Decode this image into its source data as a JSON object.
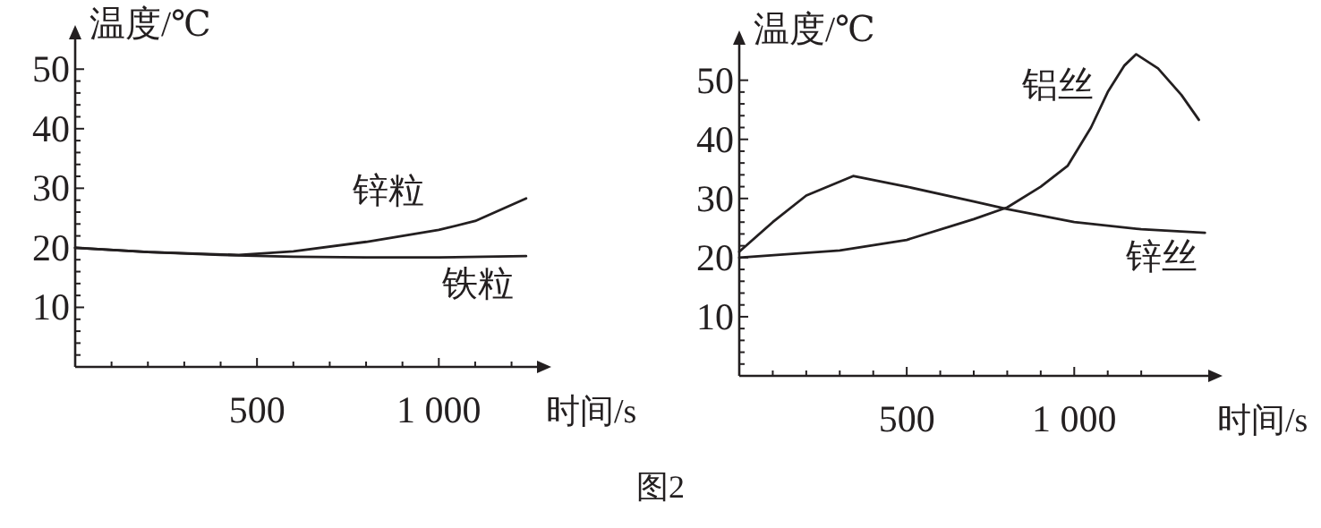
{
  "chart_data": [
    {
      "type": "line",
      "ylabel": "温度/℃",
      "xlabel": "时间/s",
      "xlim": [
        0,
        1270
      ],
      "ylim": [
        0,
        55
      ],
      "xticks": [
        {
          "value": 100,
          "label": null
        },
        {
          "value": 200,
          "label": null
        },
        {
          "value": 300,
          "label": null
        },
        {
          "value": 400,
          "label": null
        },
        500,
        {
          "value": 600,
          "label": null
        },
        {
          "value": 700,
          "label": null
        },
        {
          "value": 800,
          "label": null
        },
        {
          "value": 900,
          "label": null
        },
        {
          "value": 1000,
          "label": "1 000"
        },
        {
          "value": 1100,
          "label": null
        },
        {
          "value": 1200,
          "label": null
        }
      ],
      "yticks": [
        {
          "value": 2,
          "label": null
        },
        {
          "value": 4,
          "label": null
        },
        {
          "value": 6,
          "label": null
        },
        {
          "value": 8,
          "label": null
        },
        10,
        {
          "value": 12,
          "label": null
        },
        {
          "value": 14,
          "label": null
        },
        {
          "value": 16,
          "label": null
        },
        {
          "value": 18,
          "label": null
        },
        20,
        {
          "value": 22,
          "label": null
        },
        {
          "value": 24,
          "label": null
        },
        {
          "value": 26,
          "label": null
        },
        {
          "value": 28,
          "label": null
        },
        30,
        {
          "value": 32,
          "label": null
        },
        {
          "value": 34,
          "label": null
        },
        {
          "value": 36,
          "label": null
        },
        {
          "value": 38,
          "label": null
        },
        40,
        {
          "value": 42,
          "label": null
        },
        {
          "value": 44,
          "label": null
        },
        {
          "value": 46,
          "label": null
        },
        {
          "value": 48,
          "label": null
        },
        50
      ],
      "series": [
        {
          "name": "锌粒",
          "color": "#231f20",
          "x": [
            0,
            200,
            450,
            600,
            800,
            1000,
            1100,
            1240
          ],
          "values": [
            20,
            19.3,
            18.8,
            19.4,
            21,
            23,
            24.5,
            28.3
          ]
        },
        {
          "name": "铁粒",
          "color": "#231f20",
          "x": [
            0,
            200,
            400,
            600,
            800,
            1000,
            1240
          ],
          "values": [
            20,
            19.3,
            18.8,
            18.5,
            18.4,
            18.4,
            18.6
          ]
        }
      ],
      "annotations": [
        "图2"
      ]
    },
    {
      "type": "line",
      "ylabel": "温度/℃",
      "xlabel": "时间/s",
      "xlim": [
        0,
        1400
      ],
      "ylim": [
        0,
        56
      ],
      "xticks": [
        {
          "value": 100,
          "label": null
        },
        {
          "value": 200,
          "label": null
        },
        {
          "value": 300,
          "label": null
        },
        {
          "value": 400,
          "label": null
        },
        500,
        {
          "value": 600,
          "label": null
        },
        {
          "value": 700,
          "label": null
        },
        {
          "value": 800,
          "label": null
        },
        {
          "value": 900,
          "label": null
        },
        {
          "value": 1000,
          "label": "1 000"
        },
        {
          "value": 1100,
          "label": null
        },
        {
          "value": 1200,
          "label": null
        }
      ],
      "yticks": [
        {
          "value": 2,
          "label": null
        },
        {
          "value": 4,
          "label": null
        },
        {
          "value": 6,
          "label": null
        },
        {
          "value": 8,
          "label": null
        },
        10,
        {
          "value": 12,
          "label": null
        },
        {
          "value": 14,
          "label": null
        },
        {
          "value": 16,
          "label": null
        },
        {
          "value": 18,
          "label": null
        },
        20,
        {
          "value": 22,
          "label": null
        },
        {
          "value": 24,
          "label": null
        },
        {
          "value": 26,
          "label": null
        },
        {
          "value": 28,
          "label": null
        },
        30,
        {
          "value": 32,
          "label": null
        },
        {
          "value": 34,
          "label": null
        },
        {
          "value": 36,
          "label": null
        },
        {
          "value": 38,
          "label": null
        },
        40,
        {
          "value": 42,
          "label": null
        },
        {
          "value": 44,
          "label": null
        },
        {
          "value": 46,
          "label": null
        },
        {
          "value": 48,
          "label": null
        },
        50
      ],
      "series": [
        {
          "name": "铝丝",
          "color": "#231f20",
          "x": [
            0,
            300,
            500,
            700,
            800,
            900,
            980,
            1050,
            1100,
            1150,
            1185,
            1250,
            1320,
            1372
          ],
          "values": [
            20,
            21.2,
            23,
            26.5,
            28.5,
            32,
            35.5,
            42,
            48,
            52.5,
            54.4,
            52,
            47.5,
            43.3
          ]
        },
        {
          "name": "锌丝",
          "color": "#231f20",
          "x": [
            0,
            100,
            200,
            340,
            500,
            700,
            800,
            1000,
            1200,
            1390
          ],
          "values": [
            21,
            26,
            30.5,
            33.8,
            32,
            29.5,
            28.2,
            26,
            24.8,
            24.2
          ]
        }
      ]
    }
  ]
}
